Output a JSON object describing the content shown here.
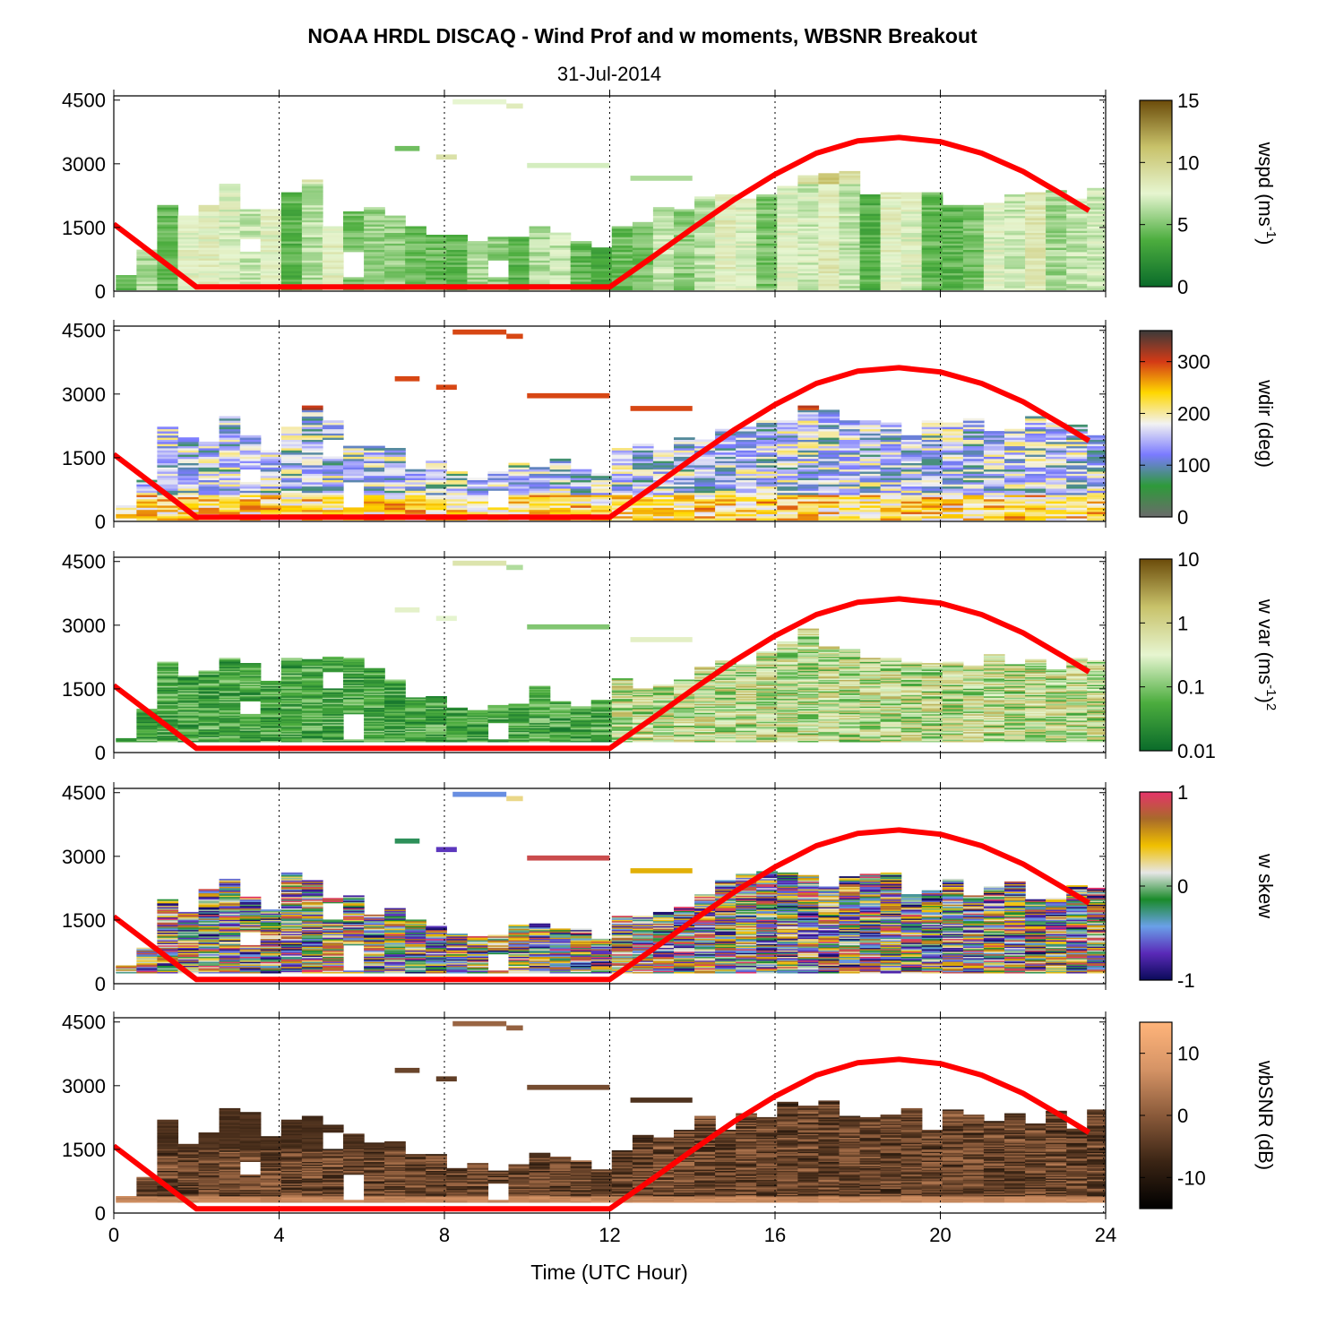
{
  "figure": {
    "title": "NOAA HRDL DISCAQ - Wind Prof and w moments, WBSNR Breakout",
    "date": "31-Jul-2014",
    "xlabel": "Time (UTC Hour)"
  },
  "chart_data": [
    {
      "type": "heatmap",
      "panel": "wspd",
      "ylabel": "wspd (ms-1)",
      "xlim": [
        0,
        24
      ],
      "ylim": [
        0,
        4600
      ],
      "xticks": [
        "0",
        "4",
        "8",
        "12",
        "16",
        "20",
        "24"
      ],
      "yticks": [
        "0",
        "1500",
        "3000",
        "4500"
      ],
      "colorbar": {
        "ticks": [
          "0",
          "5",
          "10",
          "15"
        ],
        "tick_values": [
          0,
          5,
          10,
          15
        ],
        "range": [
          0,
          15
        ]
      },
      "colors": [
        "#0a6b2a",
        "#4cad3e",
        "#e6f5d0",
        "#c8c26a",
        "#6b4b0a"
      ]
    },
    {
      "type": "heatmap",
      "panel": "wdir",
      "ylabel": "wdir (deg)",
      "xlim": [
        0,
        24
      ],
      "ylim": [
        0,
        4600
      ],
      "xticks": [
        "0",
        "4",
        "8",
        "12",
        "16",
        "20",
        "24"
      ],
      "yticks": [
        "0",
        "1500",
        "3000",
        "4500"
      ],
      "colorbar": {
        "ticks": [
          "0",
          "100",
          "200",
          "300"
        ],
        "tick_values": [
          0,
          100,
          200,
          300
        ],
        "range": [
          0,
          360
        ]
      },
      "colors": [
        "#6b6b6b",
        "#2e9a3a",
        "#7a7aff",
        "#f2f2f2",
        "#ffd700",
        "#d43a16",
        "#3a3a3a"
      ]
    },
    {
      "type": "heatmap",
      "panel": "w var",
      "ylabel": "w var (ms-1)2",
      "xlim": [
        0,
        24
      ],
      "ylim": [
        0,
        4600
      ],
      "xticks": [
        "0",
        "4",
        "8",
        "12",
        "16",
        "20",
        "24"
      ],
      "yticks": [
        "0",
        "1500",
        "3000",
        "4500"
      ],
      "colorbar": {
        "ticks": [
          "0.01",
          "0.1",
          "1",
          "10"
        ],
        "tick_values": [
          0.01,
          0.1,
          1,
          10
        ],
        "range": [
          0.01,
          10
        ],
        "scale": "log"
      },
      "colors": [
        "#0a6b2a",
        "#4cad3e",
        "#e6f5d0",
        "#c8c26a",
        "#6b4b0a"
      ]
    },
    {
      "type": "heatmap",
      "panel": "w skew",
      "ylabel": "w skew",
      "xlim": [
        0,
        24
      ],
      "ylim": [
        0,
        4600
      ],
      "xticks": [
        "0",
        "4",
        "8",
        "12",
        "16",
        "20",
        "24"
      ],
      "yticks": [
        "0",
        "1500",
        "3000",
        "4500"
      ],
      "colorbar": {
        "ticks": [
          "-1",
          "0",
          "1"
        ],
        "tick_values": [
          -1,
          0,
          1
        ],
        "range": [
          -1,
          1
        ]
      },
      "colors": [
        "#0a0a5a",
        "#5a2ab8",
        "#6aa0e8",
        "#1a8a2a",
        "#e6e6e6",
        "#f0c000",
        "#a86a2a",
        "#e6336a"
      ]
    },
    {
      "type": "heatmap",
      "panel": "wbSNR",
      "ylabel": "wbSNR (dB)",
      "xlim": [
        0,
        24
      ],
      "ylim": [
        0,
        4600
      ],
      "xticks": [
        "0",
        "4",
        "8",
        "12",
        "16",
        "20",
        "24"
      ],
      "yticks": [
        "0",
        "1500",
        "3000",
        "4500"
      ],
      "colorbar": {
        "ticks": [
          "-10",
          "0",
          "10"
        ],
        "tick_values": [
          -10,
          0,
          10
        ],
        "range": [
          -15,
          15
        ]
      },
      "colors": [
        "#000000",
        "#3a2414",
        "#8a5a3a",
        "#d69466",
        "#ffb47a"
      ]
    }
  ],
  "overlay_line": {
    "description": "boundary layer height estimate",
    "color": "#ff0000",
    "x": [
      0,
      2,
      12,
      13,
      14,
      15,
      16,
      17,
      18,
      19,
      20,
      21,
      22,
      23,
      23.6
    ],
    "y": [
      1580,
      100,
      100,
      780,
      1480,
      2150,
      2750,
      3250,
      3540,
      3620,
      3520,
      3250,
      2820,
      2250,
      1900
    ]
  }
}
